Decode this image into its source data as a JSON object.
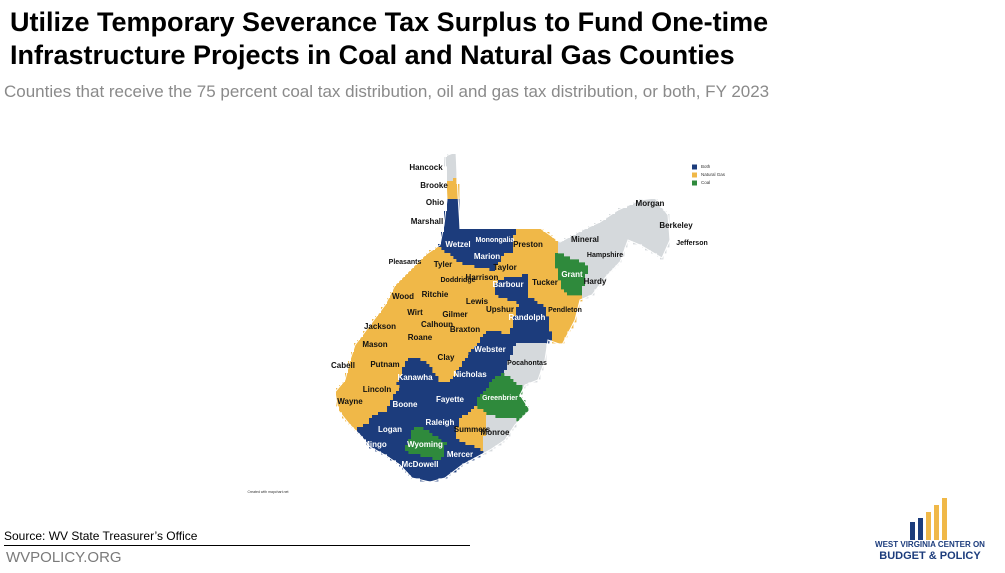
{
  "header": {
    "title_lines": [
      "Utilize Temporary Severance Tax Surplus to Fund One-time",
      "Infrastructure Projects in Coal and Natural Gas Counties"
    ],
    "subtitle": "Counties that receive the 75 percent coal tax distribution, oil and gas tax distribution, or both, FY 2023"
  },
  "legend": [
    {
      "label": "Both",
      "color": "#1c3c7c"
    },
    {
      "label": "Natural Gas",
      "color": "#f0b848"
    },
    {
      "label": "Coal",
      "color": "#2f8a3c"
    }
  ],
  "counties": [
    {
      "name": "Hancock",
      "color": "#d5d9dc"
    },
    {
      "name": "Brooke",
      "color": "#f0b848"
    },
    {
      "name": "Ohio",
      "color": "#1c3c7c"
    },
    {
      "name": "Marshall",
      "color": "#1c3c7c"
    },
    {
      "name": "Wetzel",
      "color": "#1c3c7c"
    },
    {
      "name": "Monongalia",
      "color": "#1c3c7c"
    },
    {
      "name": "Preston",
      "color": "#f0b848"
    },
    {
      "name": "Marion",
      "color": "#1c3c7c"
    },
    {
      "name": "Taylor",
      "color": "#f0b848"
    },
    {
      "name": "Harrison",
      "color": "#f0b848"
    },
    {
      "name": "Barbour",
      "color": "#1c3c7c"
    },
    {
      "name": "Tucker",
      "color": "#f0b848"
    },
    {
      "name": "Tyler",
      "color": "#f0b848"
    },
    {
      "name": "Pleasants",
      "color": "#f0b848"
    },
    {
      "name": "Doddridge",
      "color": "#f0b848"
    },
    {
      "name": "Wood",
      "color": "#f0b848"
    },
    {
      "name": "Ritchie",
      "color": "#f0b848"
    },
    {
      "name": "Lewis",
      "color": "#f0b848"
    },
    {
      "name": "Upshur",
      "color": "#f0b848"
    },
    {
      "name": "Randolph",
      "color": "#1c3c7c"
    },
    {
      "name": "Wirt",
      "color": "#f0b848"
    },
    {
      "name": "Gilmer",
      "color": "#f0b848"
    },
    {
      "name": "Calhoun",
      "color": "#f0b848"
    },
    {
      "name": "Jackson",
      "color": "#f0b848"
    },
    {
      "name": "Roane",
      "color": "#f0b848"
    },
    {
      "name": "Braxton",
      "color": "#f0b848"
    },
    {
      "name": "Webster",
      "color": "#1c3c7c"
    },
    {
      "name": "Pendleton",
      "color": "#f0b848"
    },
    {
      "name": "Grant",
      "color": "#2f8a3c"
    },
    {
      "name": "Mineral",
      "color": "#d5d9dc"
    },
    {
      "name": "Hampshire",
      "color": "#d5d9dc"
    },
    {
      "name": "Hardy",
      "color": "#d5d9dc"
    },
    {
      "name": "Morgan",
      "color": "#d5d9dc"
    },
    {
      "name": "Berkeley",
      "color": "#d5d9dc"
    },
    {
      "name": "Jefferson",
      "color": "#d5d9dc"
    },
    {
      "name": "Mason",
      "color": "#f0b848"
    },
    {
      "name": "Putnam",
      "color": "#f0b848"
    },
    {
      "name": "Clay",
      "color": "#f0b848"
    },
    {
      "name": "Nicholas",
      "color": "#1c3c7c"
    },
    {
      "name": "Pocahontas",
      "color": "#d5d9dc"
    },
    {
      "name": "Kanawha",
      "color": "#1c3c7c"
    },
    {
      "name": "Cabell",
      "color": "#f0b848"
    },
    {
      "name": "Lincoln",
      "color": "#f0b848"
    },
    {
      "name": "Wayne",
      "color": "#f0b848"
    },
    {
      "name": "Boone",
      "color": "#1c3c7c"
    },
    {
      "name": "Fayette",
      "color": "#1c3c7c"
    },
    {
      "name": "Greenbrier",
      "color": "#2f8a3c"
    },
    {
      "name": "Logan",
      "color": "#1c3c7c"
    },
    {
      "name": "Raleigh",
      "color": "#1c3c7c"
    },
    {
      "name": "Summers",
      "color": "#f0b848"
    },
    {
      "name": "Monroe",
      "color": "#d5d9dc"
    },
    {
      "name": "Mingo",
      "color": "#1c3c7c"
    },
    {
      "name": "Wyoming",
      "color": "#2f8a3c"
    },
    {
      "name": "Mercer",
      "color": "#1c3c7c"
    },
    {
      "name": "McDowell",
      "color": "#1c3c7c"
    }
  ],
  "credit": "Created with mapchart.net",
  "footer": {
    "source": "Source: WV State Treasurer’s Office",
    "site": "WVPOLICY.ORG"
  },
  "logo": {
    "line1": "WEST VIRGINIA CENTER ON",
    "line2": "BUDGET & POLICY"
  }
}
